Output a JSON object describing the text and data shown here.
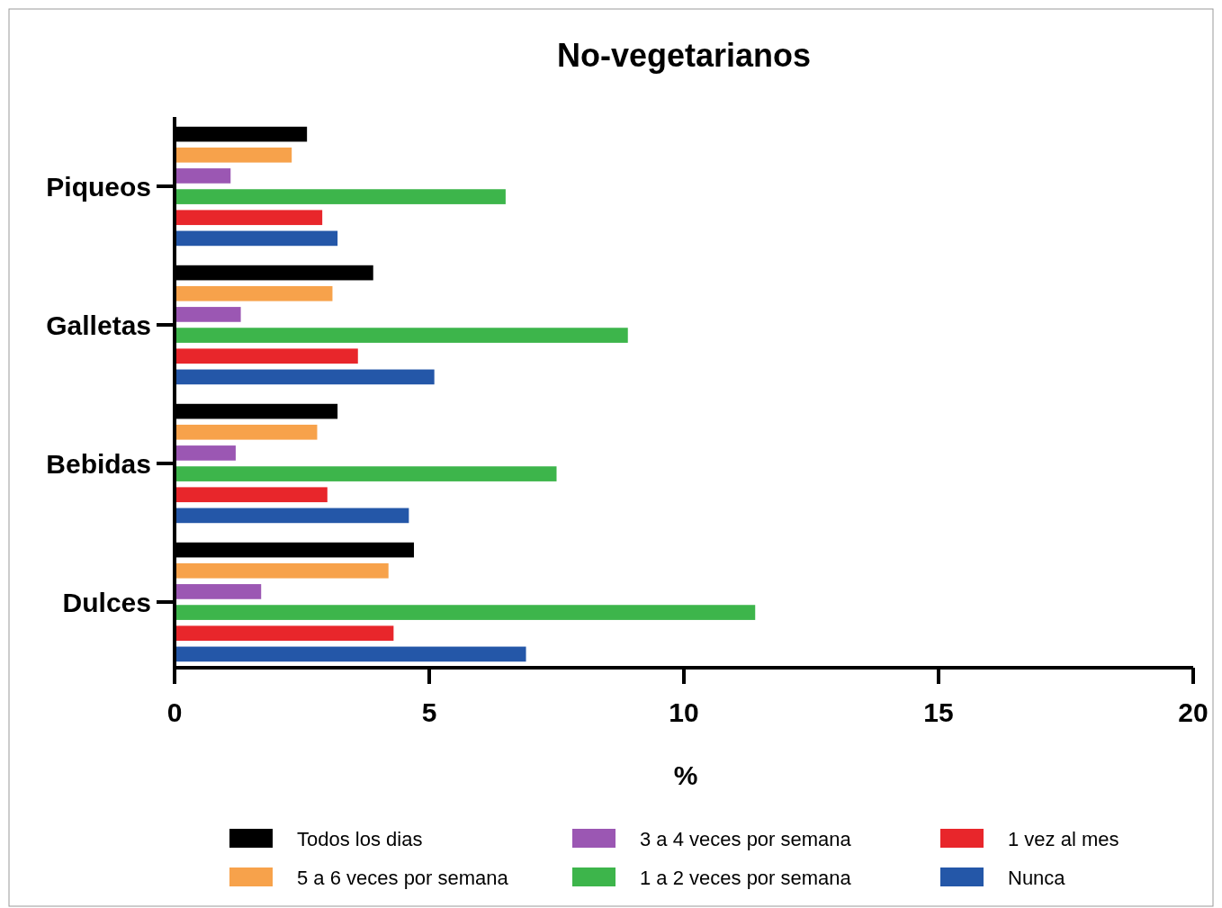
{
  "chart_data": {
    "type": "bar",
    "orientation": "horizontal",
    "title": "No-vegetarianos",
    "xlabel": "%",
    "categories": [
      "Piqueos",
      "Galletas",
      "Bebidas",
      "Dulces"
    ],
    "series": [
      {
        "name": "Todos los dias",
        "color": "#000000",
        "values": [
          2.6,
          3.9,
          3.2,
          4.7
        ]
      },
      {
        "name": "5 a 6 veces por semana",
        "color": "#f7a24b",
        "values": [
          2.3,
          3.1,
          2.8,
          4.2
        ]
      },
      {
        "name": "3 a 4 veces por semana",
        "color": "#9b57b3",
        "values": [
          1.1,
          1.3,
          1.2,
          1.7
        ]
      },
      {
        "name": "1 a 2 veces por semana",
        "color": "#3db54b",
        "values": [
          6.5,
          8.9,
          7.5,
          11.4
        ]
      },
      {
        "name": "1 vez al mes",
        "color": "#e8262b",
        "values": [
          2.9,
          3.6,
          3.0,
          4.3
        ]
      },
      {
        "name": "Nunca",
        "color": "#2457a8",
        "values": [
          3.2,
          5.1,
          4.6,
          6.9
        ]
      }
    ],
    "xlim": [
      0,
      20
    ],
    "xticks": [
      0,
      5,
      10,
      15,
      20
    ],
    "grid": false,
    "legend": "bottom"
  }
}
